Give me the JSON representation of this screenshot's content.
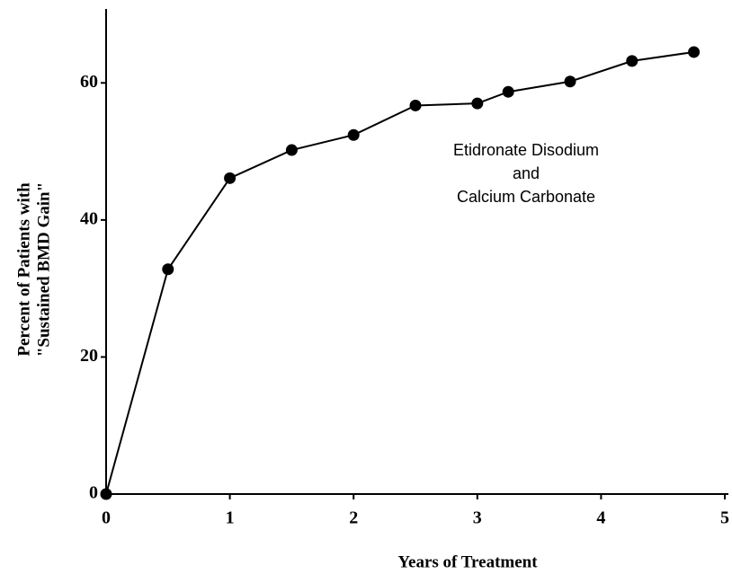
{
  "chart_data": {
    "type": "line",
    "x_label": "Years of Treatment",
    "y_label": [
      "Percent of Patients with",
      "\"Sustained BMD Gain\""
    ],
    "annotation": [
      "Etidronate Disodium",
      "and",
      "Calcium Carbonate"
    ],
    "x": [
      0,
      0.5,
      1,
      1.5,
      2,
      2.5,
      3,
      3.25,
      3.75,
      4.25,
      4.75
    ],
    "series": [
      {
        "name": "Etidronate Disodium and Calcium Carbonate",
        "color": "#000000",
        "values": [
          0,
          32.8,
          46.1,
          50.2,
          52.4,
          56.7,
          57.0,
          58.7,
          60.2,
          63.2,
          64.5
        ]
      }
    ],
    "xlim": [
      0,
      5
    ],
    "xticks": [
      0,
      1,
      2,
      3,
      4,
      5
    ],
    "ylim": [
      0,
      70
    ],
    "yticks": [
      0,
      20,
      40,
      60
    ]
  }
}
